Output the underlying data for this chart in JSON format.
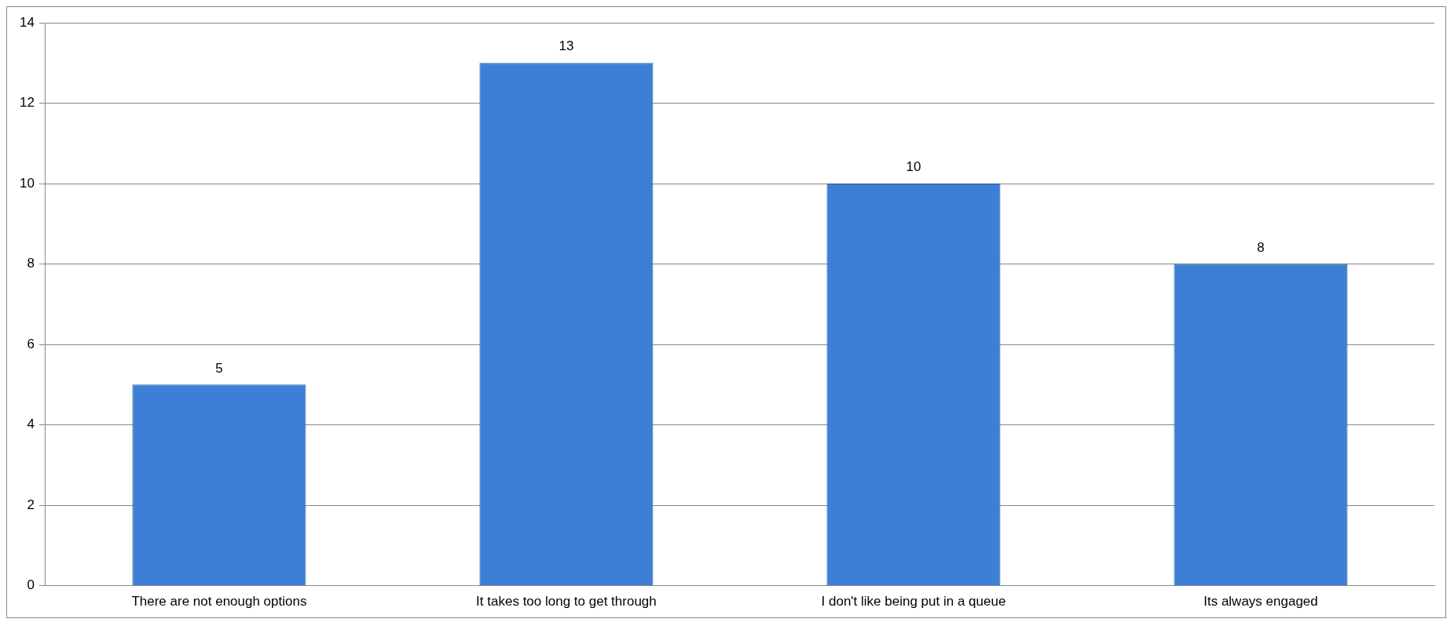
{
  "chart_data": {
    "type": "bar",
    "categories": [
      "There are not enough options",
      "It takes too long to get through",
      "I don't like being put in a queue",
      "Its always engaged"
    ],
    "values": [
      5,
      13,
      10,
      8
    ],
    "color": "#3d7fd6",
    "ylim": [
      0,
      14
    ],
    "yticks": [
      0,
      2,
      4,
      6,
      8,
      10,
      12,
      14
    ],
    "grid": "y",
    "data_labels": true,
    "legend": false
  }
}
